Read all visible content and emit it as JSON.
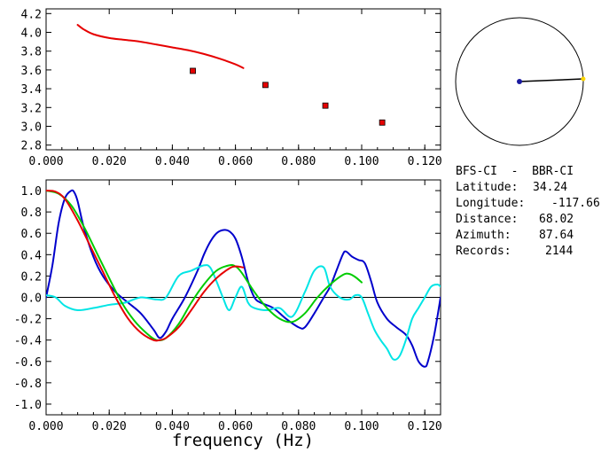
{
  "info": {
    "title": "BFS-CI  -  BBR-CI",
    "rows": [
      {
        "label": "Latitude:",
        "value": "34.24"
      },
      {
        "label": "Longitude:",
        "value": "-117.66"
      },
      {
        "label": "Distance:",
        "value": "68.02"
      },
      {
        "label": "Azimuth:",
        "value": "87.64"
      },
      {
        "label": "Records:",
        "value": "2144"
      }
    ]
  },
  "chart_data": [
    {
      "type": "line",
      "xlim": [
        0.0,
        0.125
      ],
      "ylim": [
        2.75,
        4.25
      ],
      "x_ticks": [
        "0.000",
        "0.020",
        "0.040",
        "0.060",
        "0.080",
        "0.100",
        "0.120"
      ],
      "y_ticks": [
        "2.8",
        "3.0",
        "3.2",
        "3.4",
        "3.6",
        "3.8",
        "4.0",
        "4.2"
      ],
      "grid": false,
      "series": [
        {
          "color": "#e60000",
          "kind": "line",
          "x": [
            0.01,
            0.012,
            0.015,
            0.02,
            0.025,
            0.03,
            0.035,
            0.04,
            0.045,
            0.05,
            0.055,
            0.06,
            0.0625
          ],
          "y": [
            4.08,
            4.03,
            3.98,
            3.94,
            3.92,
            3.9,
            3.87,
            3.84,
            3.81,
            3.77,
            3.72,
            3.66,
            3.62
          ]
        },
        {
          "color": "#e60000",
          "kind": "markers",
          "x": [
            0.0465,
            0.0695,
            0.0885,
            0.1065
          ],
          "y": [
            3.59,
            3.44,
            3.22,
            3.04
          ]
        }
      ]
    },
    {
      "type": "line",
      "xlim": [
        0.0,
        0.125
      ],
      "ylim": [
        -1.1,
        1.1
      ],
      "x_ticks": [
        "0.000",
        "0.020",
        "0.040",
        "0.060",
        "0.080",
        "0.100",
        "0.120"
      ],
      "y_ticks": [
        "1.0",
        "0.8",
        "0.6",
        "0.4",
        "0.2",
        "0.0",
        "-0.2",
        "-0.4",
        "-0.6",
        "-0.8",
        "-1.0"
      ],
      "xlabel": "frequency (Hz)",
      "zero_line": true,
      "grid": false,
      "series": [
        {
          "color": "#0000cc",
          "x": [
            0.0,
            0.002,
            0.004,
            0.006,
            0.008,
            0.009,
            0.01,
            0.012,
            0.015,
            0.018,
            0.022,
            0.026,
            0.03,
            0.034,
            0.036,
            0.038,
            0.04,
            0.044,
            0.048,
            0.05,
            0.052,
            0.054,
            0.056,
            0.058,
            0.06,
            0.062,
            0.064,
            0.066,
            0.068,
            0.072,
            0.076,
            0.08,
            0.082,
            0.085,
            0.088,
            0.09,
            0.092,
            0.094,
            0.095,
            0.097,
            0.099,
            0.101,
            0.103,
            0.105,
            0.108,
            0.111,
            0.114,
            0.116,
            0.118,
            0.12,
            0.121,
            0.123,
            0.125
          ],
          "y": [
            0.0,
            0.3,
            0.7,
            0.93,
            1.0,
            0.98,
            0.9,
            0.65,
            0.38,
            0.2,
            0.05,
            -0.05,
            -0.15,
            -0.3,
            -0.38,
            -0.32,
            -0.2,
            0.0,
            0.25,
            0.4,
            0.52,
            0.6,
            0.63,
            0.62,
            0.55,
            0.38,
            0.15,
            0.0,
            -0.05,
            -0.1,
            -0.2,
            -0.28,
            -0.28,
            -0.15,
            0.0,
            0.1,
            0.25,
            0.4,
            0.43,
            0.38,
            0.35,
            0.32,
            0.15,
            -0.05,
            -0.2,
            -0.28,
            -0.35,
            -0.45,
            -0.6,
            -0.65,
            -0.6,
            -0.35,
            0.0
          ]
        },
        {
          "color": "#00e5e5",
          "x": [
            0.0,
            0.003,
            0.006,
            0.01,
            0.015,
            0.02,
            0.025,
            0.03,
            0.035,
            0.038,
            0.042,
            0.046,
            0.05,
            0.052,
            0.054,
            0.056,
            0.058,
            0.06,
            0.062,
            0.064,
            0.066,
            0.07,
            0.074,
            0.078,
            0.082,
            0.085,
            0.088,
            0.09,
            0.093,
            0.096,
            0.098,
            0.1,
            0.102,
            0.104,
            0.106,
            0.108,
            0.11,
            0.112,
            0.114,
            0.116,
            0.118,
            0.12,
            0.122,
            0.124,
            0.125
          ],
          "y": [
            0.02,
            0.0,
            -0.08,
            -0.12,
            -0.1,
            -0.07,
            -0.05,
            0.0,
            -0.02,
            0.0,
            0.2,
            0.25,
            0.3,
            0.28,
            0.15,
            0.0,
            -0.12,
            0.0,
            0.1,
            -0.05,
            -0.1,
            -0.12,
            -0.1,
            -0.18,
            0.05,
            0.25,
            0.28,
            0.1,
            0.0,
            -0.02,
            0.02,
            0.0,
            -0.15,
            -0.3,
            -0.4,
            -0.48,
            -0.58,
            -0.55,
            -0.4,
            -0.2,
            -0.1,
            0.0,
            0.1,
            0.12,
            0.1
          ]
        },
        {
          "color": "#00cc00",
          "x": [
            0.0,
            0.004,
            0.008,
            0.012,
            0.016,
            0.02,
            0.024,
            0.028,
            0.032,
            0.035,
            0.038,
            0.042,
            0.046,
            0.05,
            0.054,
            0.058,
            0.06,
            0.062,
            0.066,
            0.07,
            0.074,
            0.078,
            0.082,
            0.086,
            0.09,
            0.094,
            0.096,
            0.098,
            0.1
          ],
          "y": [
            1.0,
            0.97,
            0.86,
            0.66,
            0.42,
            0.18,
            -0.05,
            -0.22,
            -0.34,
            -0.4,
            -0.38,
            -0.25,
            -0.05,
            0.12,
            0.25,
            0.3,
            0.29,
            0.23,
            0.05,
            -0.1,
            -0.2,
            -0.23,
            -0.15,
            0.0,
            0.12,
            0.21,
            0.22,
            0.19,
            0.14
          ]
        },
        {
          "color": "#e60000",
          "x": [
            0.0,
            0.003,
            0.006,
            0.01,
            0.014,
            0.018,
            0.022,
            0.026,
            0.03,
            0.034,
            0.036,
            0.038,
            0.042,
            0.046,
            0.05,
            0.054,
            0.058,
            0.06,
            0.0625
          ],
          "y": [
            1.0,
            0.99,
            0.92,
            0.72,
            0.48,
            0.24,
            0.0,
            -0.2,
            -0.33,
            -0.4,
            -0.4,
            -0.38,
            -0.28,
            -0.12,
            0.05,
            0.18,
            0.27,
            0.29,
            0.28
          ]
        }
      ]
    }
  ],
  "azimuth_plot": {
    "azimuth_deg": 87.64
  }
}
